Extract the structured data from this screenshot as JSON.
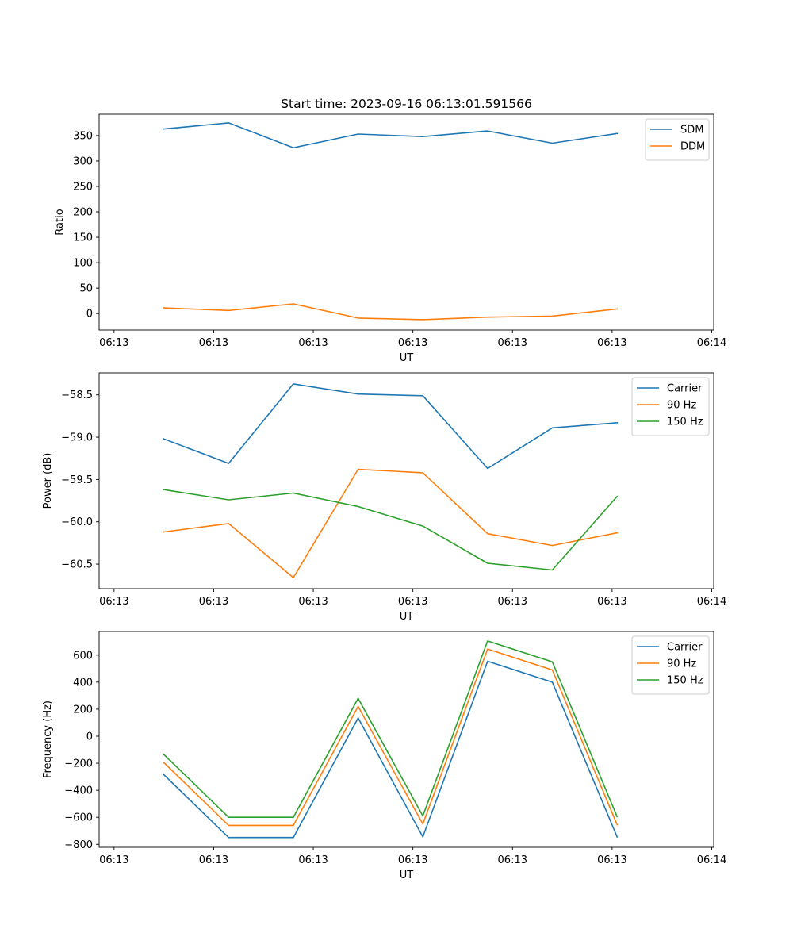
{
  "figure": {
    "title": "Start time: 2023-09-16 06:13:01.591566"
  },
  "chart_data": [
    {
      "type": "line",
      "title": "Start time: 2023-09-16 06:13:01.591566",
      "xlabel": "UT",
      "ylabel": "Ratio",
      "x_tick_labels": [
        "06:13",
        "06:13",
        "06:13",
        "06:13",
        "06:13",
        "06:13",
        "06:14"
      ],
      "x_ticks": [
        0,
        1,
        2,
        3,
        4,
        5,
        6
      ],
      "xlim": [
        -0.15,
        6.02
      ],
      "x": [
        0.5,
        1.15,
        1.8,
        2.45,
        3.1,
        3.75,
        4.4,
        5.05
      ],
      "ylim": [
        -32.5,
        392
      ],
      "y_ticks": [
        0,
        50,
        100,
        150,
        200,
        250,
        300,
        350
      ],
      "y_tick_labels": [
        "0",
        "50",
        "100",
        "150",
        "200",
        "250",
        "300",
        "350"
      ],
      "legend": "top-right",
      "series": [
        {
          "name": "SDM",
          "color": "#1f77b4",
          "values": [
            363,
            375,
            326,
            353,
            348,
            359,
            335,
            354
          ]
        },
        {
          "name": "DDM",
          "color": "#ff7f0e",
          "values": [
            11,
            6,
            19,
            -9,
            -12,
            -7,
            -5,
            9
          ]
        }
      ]
    },
    {
      "type": "line",
      "title": "",
      "xlabel": "UT",
      "ylabel": "Power (dB)",
      "x_tick_labels": [
        "06:13",
        "06:13",
        "06:13",
        "06:13",
        "06:13",
        "06:13",
        "06:14"
      ],
      "x_ticks": [
        0,
        1,
        2,
        3,
        4,
        5,
        6
      ],
      "xlim": [
        -0.15,
        6.02
      ],
      "x": [
        0.5,
        1.15,
        1.8,
        2.45,
        3.1,
        3.75,
        4.4,
        5.05
      ],
      "ylim": [
        -60.79,
        -58.24
      ],
      "y_ticks": [
        -60.5,
        -60.0,
        -59.5,
        -59.0,
        -58.5
      ],
      "y_tick_labels": [
        "−60.5",
        "−60.0",
        "−59.5",
        "−59.0",
        "−58.5"
      ],
      "legend": "top-right",
      "series": [
        {
          "name": "Carrier",
          "color": "#1f77b4",
          "values": [
            -59.02,
            -59.31,
            -58.37,
            -58.49,
            -58.51,
            -59.37,
            -58.89,
            -58.83
          ]
        },
        {
          "name": "90 Hz",
          "color": "#ff7f0e",
          "values": [
            -60.12,
            -60.02,
            -60.66,
            -59.38,
            -59.42,
            -60.14,
            -60.28,
            -60.13
          ]
        },
        {
          "name": "150 Hz",
          "color": "#2ca02c",
          "values": [
            -59.62,
            -59.74,
            -59.66,
            -59.82,
            -60.05,
            -60.49,
            -60.57,
            -59.7
          ]
        }
      ]
    },
    {
      "type": "line",
      "title": "",
      "xlabel": "UT",
      "ylabel": "Frequency (Hz)",
      "x_tick_labels": [
        "06:13",
        "06:13",
        "06:13",
        "06:13",
        "06:13",
        "06:13",
        "06:14"
      ],
      "x_ticks": [
        0,
        1,
        2,
        3,
        4,
        5,
        6
      ],
      "xlim": [
        -0.15,
        6.02
      ],
      "x": [
        0.5,
        1.15,
        1.8,
        2.45,
        3.1,
        3.75,
        4.4,
        5.05
      ],
      "ylim": [
        -822,
        775
      ],
      "y_ticks": [
        -800,
        -600,
        -400,
        -200,
        0,
        200,
        400,
        600
      ],
      "y_tick_labels": [
        "−800",
        "−600",
        "−400",
        "−200",
        "0",
        "200",
        "400",
        "600"
      ],
      "legend": "top-right",
      "series": [
        {
          "name": "Carrier",
          "color": "#1f77b4",
          "values": [
            -285,
            -750,
            -750,
            135,
            -745,
            555,
            400,
            -745
          ]
        },
        {
          "name": "90 Hz",
          "color": "#ff7f0e",
          "values": [
            -195,
            -660,
            -660,
            220,
            -650,
            645,
            490,
            -655
          ]
        },
        {
          "name": "150 Hz",
          "color": "#2ca02c",
          "values": [
            -135,
            -600,
            -600,
            280,
            -590,
            705,
            550,
            -595
          ]
        }
      ]
    }
  ]
}
